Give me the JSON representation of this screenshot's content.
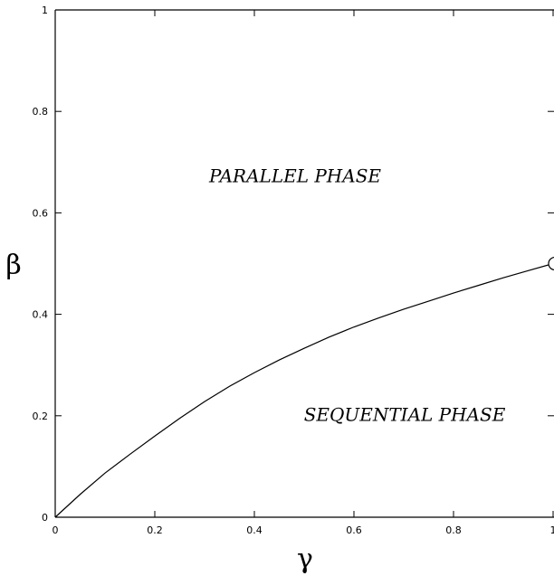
{
  "chart_data": {
    "type": "line",
    "title": "",
    "xlabel": "γ",
    "ylabel": "β",
    "xlim": [
      0,
      1
    ],
    "ylim": [
      0,
      1
    ],
    "grid": false,
    "x_ticks": [
      "0",
      "0.2",
      "0.4",
      "0.6",
      "0.8",
      "1"
    ],
    "y_ticks": [
      "0",
      "0.2",
      "0.4",
      "0.6",
      "0.8",
      "1"
    ],
    "series": [
      {
        "x": [
          0,
          0.05,
          0.1,
          0.15,
          0.2,
          0.25,
          0.3,
          0.35,
          0.4,
          0.45,
          0.5,
          0.55,
          0.6,
          0.65,
          0.7,
          0.75,
          0.8,
          0.85,
          0.9,
          0.95,
          1.0
        ],
        "y": [
          0,
          0.045,
          0.087,
          0.124,
          0.16,
          0.195,
          0.228,
          0.258,
          0.285,
          0.31,
          0.333,
          0.355,
          0.375,
          0.393,
          0.41,
          0.426,
          0.442,
          0.457,
          0.472,
          0.486,
          0.5
        ]
      }
    ],
    "marker": {
      "x": 1.0,
      "y": 0.5,
      "shape": "open-circle"
    },
    "annotations": [
      {
        "text": "PARALLEL PHASE",
        "x": 0.5,
        "y": 0.66
      },
      {
        "text": "SEQUENTIAL PHASE",
        "x": 0.72,
        "y": 0.19
      }
    ]
  }
}
